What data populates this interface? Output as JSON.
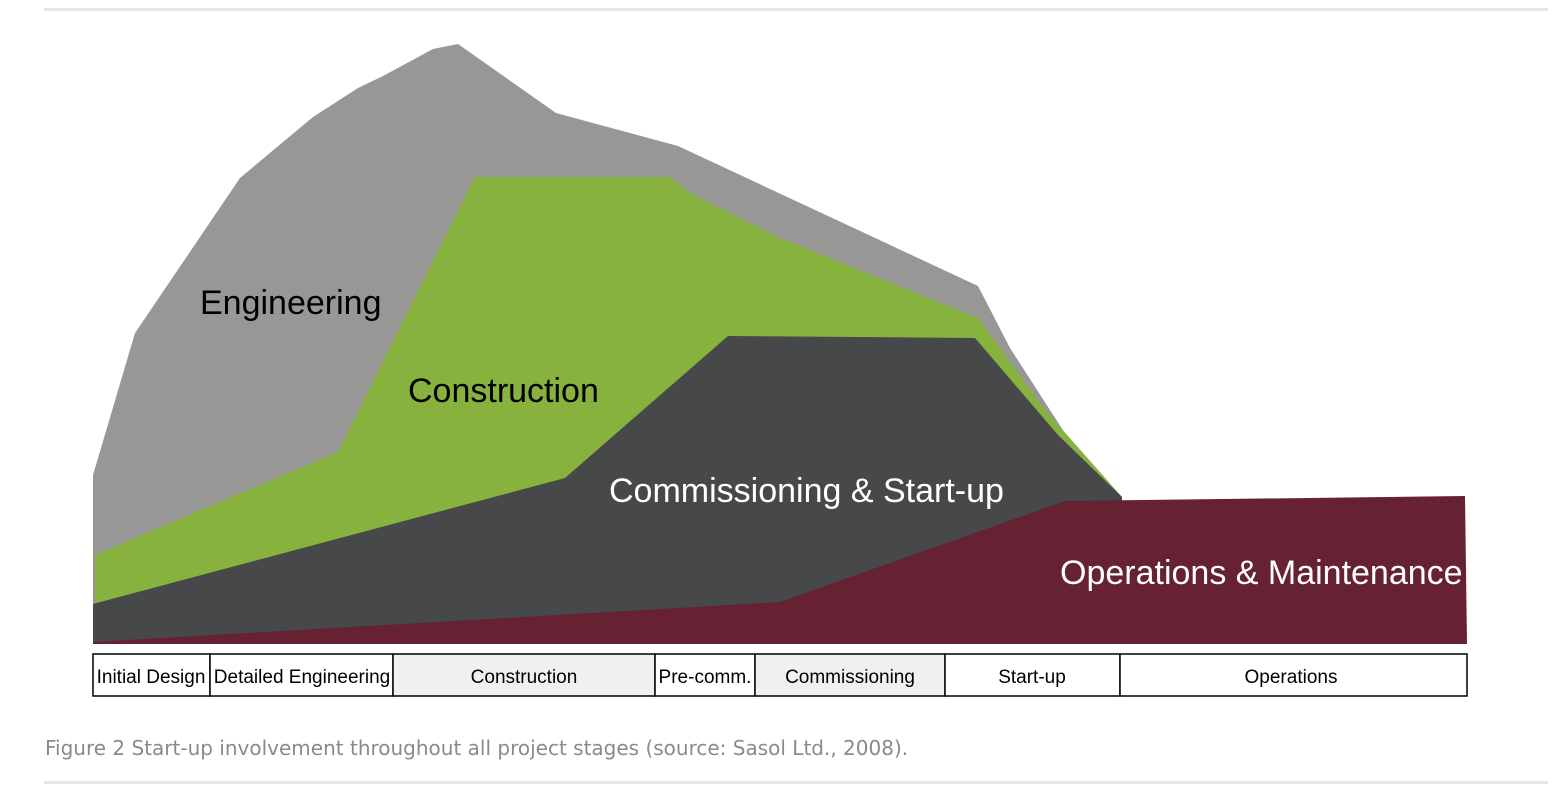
{
  "regions": [
    {
      "label": "Engineering",
      "color": "#979896",
      "label_color": "#000000"
    },
    {
      "label": "Construction",
      "color": "#87b23e",
      "label_color": "#000000"
    },
    {
      "label": "Commissioning & Start-up",
      "color": "#474849",
      "label_color": "#ffffff"
    },
    {
      "label": "Operations & Maintenance",
      "color": "#662133",
      "label_color": "#ffffff"
    }
  ],
  "stages": [
    {
      "label": "Initial Design",
      "fill": "#ffffff"
    },
    {
      "label": "Detailed Engineering",
      "fill": "#ffffff"
    },
    {
      "label": "Construction",
      "fill": "#f0f0f0"
    },
    {
      "label": "Pre-comm.",
      "fill": "#ffffff"
    },
    {
      "label": "Commissioning",
      "fill": "#f0f0f0"
    },
    {
      "label": "Start-up",
      "fill": "#ffffff"
    },
    {
      "label": "Operations",
      "fill": "#ffffff"
    }
  ],
  "caption": "Figure 2 Start-up involvement throughout all project stages (source: Sasol Ltd., 2008)."
}
